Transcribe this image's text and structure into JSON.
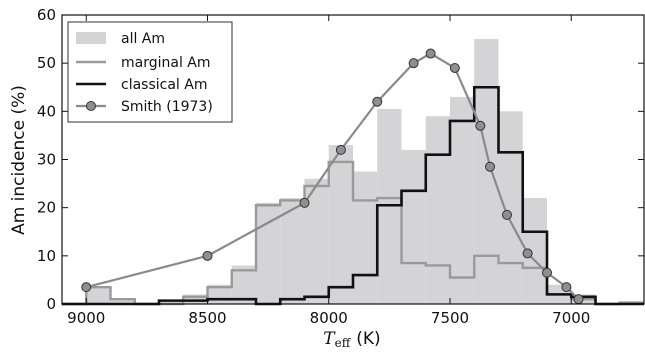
{
  "chart_data": {
    "type": "histogram-step-line",
    "title": "",
    "xlabel_prefix": "T",
    "xlabel_sub": "eff",
    "xlabel_unit": "(K)",
    "ylabel": "Am incidence (%)",
    "x_reversed": true,
    "xlim": [
      9100,
      6700
    ],
    "ylim": [
      0,
      60
    ],
    "x_ticks": [
      9000,
      8500,
      8000,
      7500,
      7000
    ],
    "x_tick_labels": [
      "9000",
      "8500",
      "8000",
      "7500",
      "7000"
    ],
    "y_ticks": [
      0,
      10,
      20,
      30,
      40,
      50,
      60
    ],
    "y_tick_labels": [
      "0",
      "10",
      "20",
      "30",
      "40",
      "50",
      "60"
    ],
    "bin_edges": [
      9100,
      9000,
      8900,
      8800,
      8700,
      8600,
      8500,
      8400,
      8300,
      8200,
      8100,
      8000,
      7900,
      7800,
      7700,
      7600,
      7500,
      7400,
      7300,
      7200,
      7100,
      7000,
      6900,
      6800,
      6700
    ],
    "legend_position": "upper-left",
    "legend": {
      "all": "all Am",
      "marginal": "marginal Am",
      "classical": "classical Am",
      "smith": "Smith (1973)"
    },
    "colors": {
      "all": "#d4d4d6",
      "marginal": "#9a9a9a",
      "classical": "#111111",
      "smith_line": "#8a8a8a",
      "smith_marker": "#8f8f8f"
    },
    "series": [
      {
        "key": "all",
        "style": "bar",
        "values": [
          0,
          3.5,
          1,
          0,
          0.5,
          2,
          4,
          8,
          21,
          22,
          26,
          33,
          27.5,
          40.5,
          32,
          39,
          43,
          55,
          40,
          22,
          4,
          2,
          0,
          0.3
        ]
      },
      {
        "key": "marginal",
        "style": "step",
        "values": [
          0,
          3.5,
          1,
          0,
          0,
          1.5,
          3.5,
          7,
          20.5,
          21.5,
          24.5,
          29.5,
          21.5,
          22,
          8.5,
          8,
          5.5,
          10,
          8.5,
          7.5,
          2,
          1,
          0,
          0.3
        ]
      },
      {
        "key": "classical",
        "style": "step",
        "values": [
          0,
          0,
          0,
          0,
          0.7,
          0.7,
          1,
          1,
          0,
          1,
          1.5,
          3.5,
          6,
          20.5,
          23.5,
          31,
          38,
          45,
          31.5,
          15,
          2,
          1.5,
          0,
          0
        ]
      },
      {
        "key": "smith",
        "style": "line-markers",
        "x": [
          9000,
          8500,
          8100,
          7950,
          7800,
          7650,
          7580,
          7480,
          7375,
          7335,
          7265,
          7180,
          7100,
          7020,
          6970
        ],
        "y": [
          3.5,
          10,
          21,
          32,
          42,
          50,
          52,
          49,
          37,
          28.5,
          18.5,
          10.5,
          6.5,
          3.5,
          1
        ]
      }
    ]
  }
}
